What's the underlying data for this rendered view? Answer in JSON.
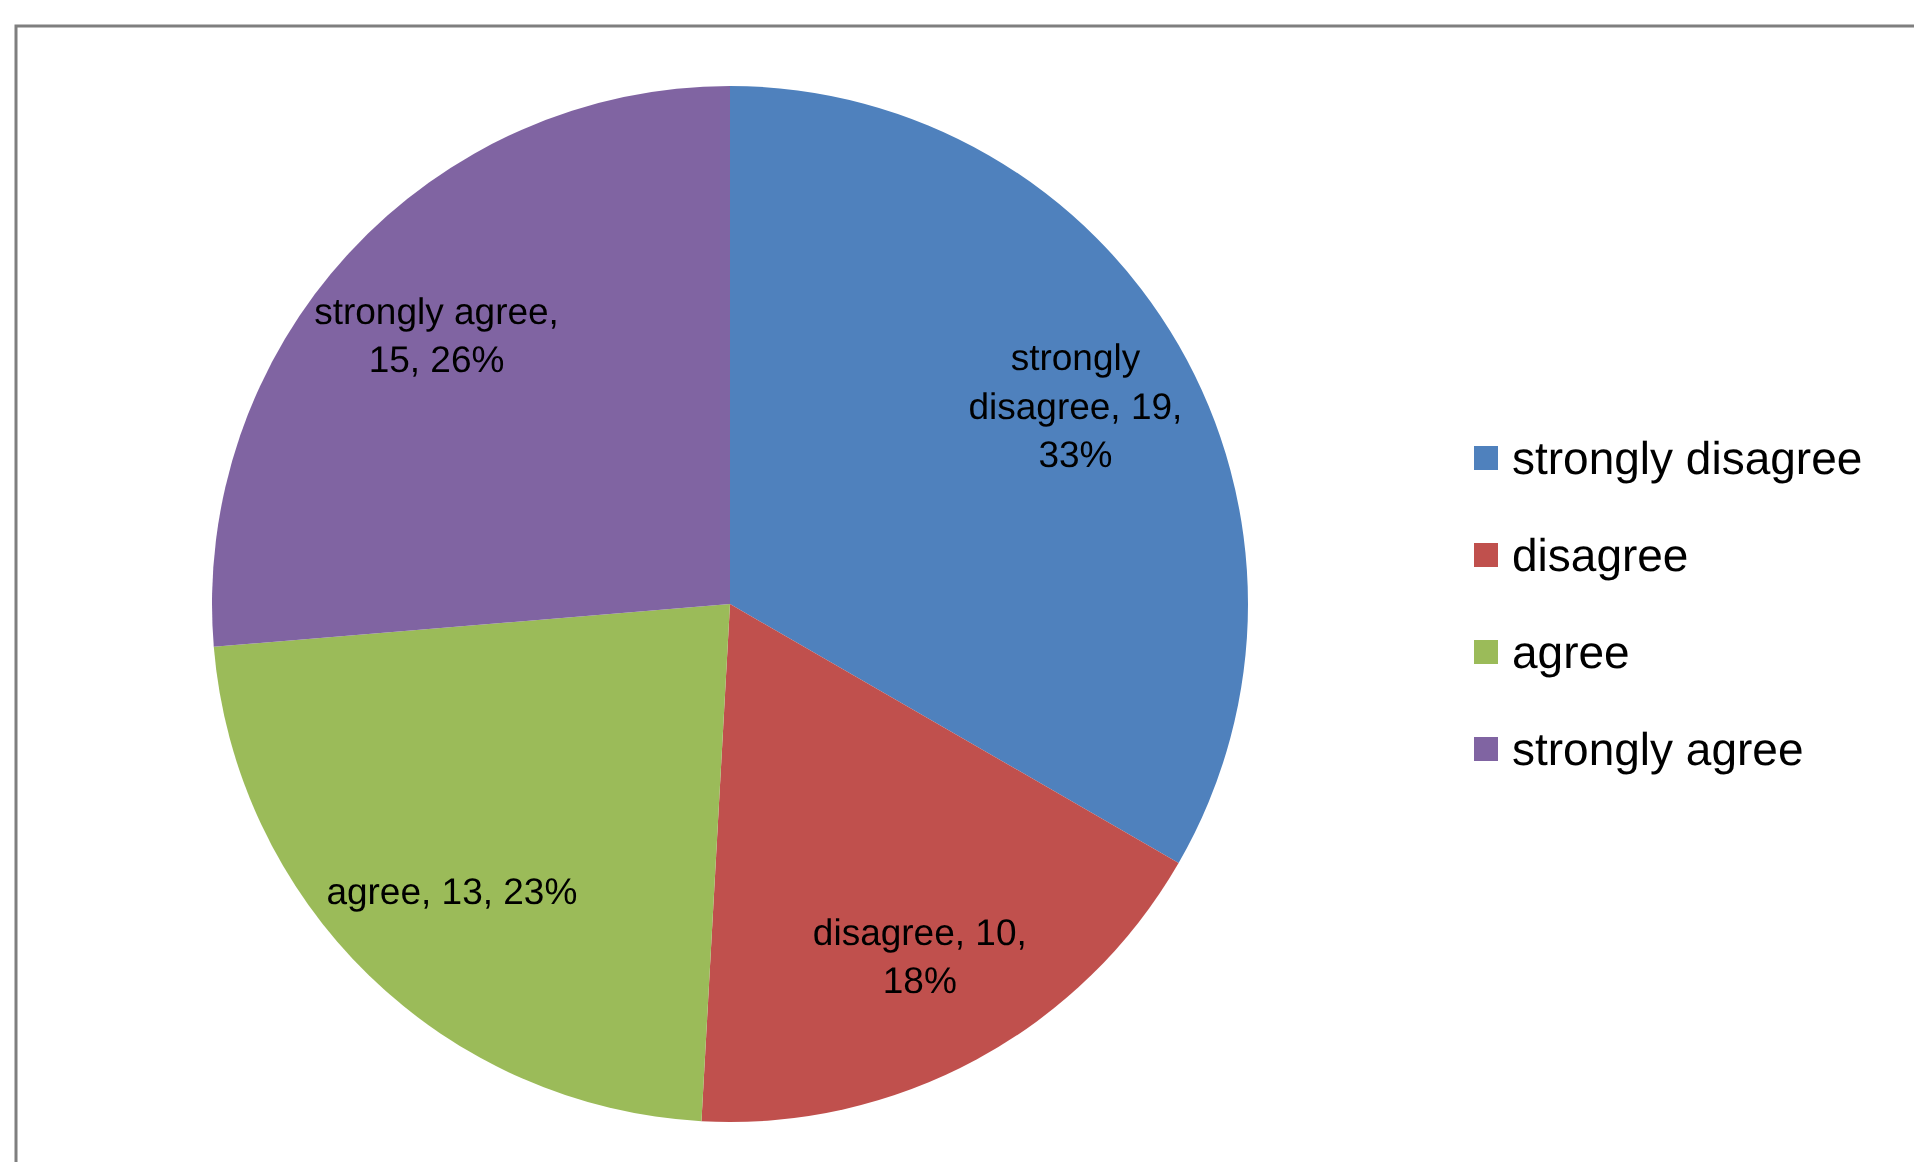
{
  "chart_data": {
    "type": "pie",
    "categories": [
      "strongly disagree",
      "disagree",
      "agree",
      "strongly agree"
    ],
    "values": [
      19,
      10,
      13,
      15
    ],
    "colors": [
      "#4f81bd",
      "#c0504d",
      "#9bbb59",
      "#8064a2"
    ],
    "value_labels": [
      "strongly disagree, 19, 33%",
      "disagree, 10, 18%",
      "agree, 13, 23%",
      "strongly agree, 15, 26%"
    ],
    "legend": "right"
  }
}
